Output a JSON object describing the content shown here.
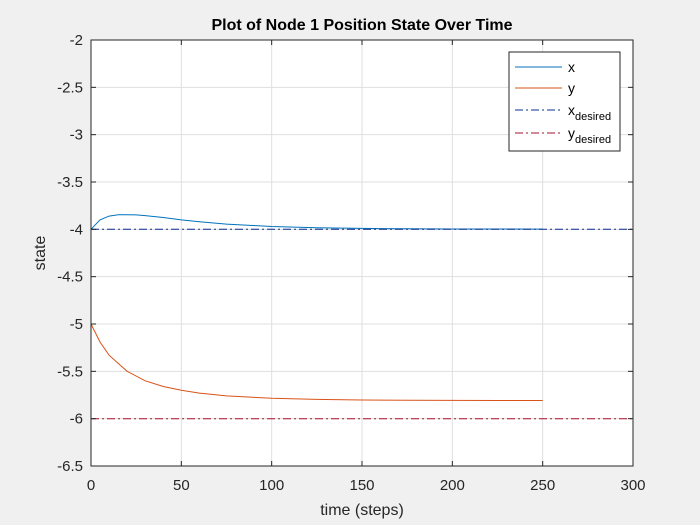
{
  "chart_data": {
    "type": "line",
    "title": "Plot of Node 1 Position State Over Time",
    "xlabel": "time (steps)",
    "ylabel": "state",
    "xlim": [
      0,
      300
    ],
    "ylim": [
      -6.5,
      -2
    ],
    "xticks": [
      0,
      50,
      100,
      150,
      200,
      250,
      300
    ],
    "yticks": [
      -6.5,
      -6,
      -5.5,
      -5,
      -4.5,
      -4,
      -3.5,
      -3,
      -2.5,
      -2
    ],
    "xtick_labels": [
      "0",
      "50",
      "100",
      "150",
      "200",
      "250",
      "300"
    ],
    "ytick_labels": [
      "-6.5",
      "-6",
      "-5.5",
      "-5",
      "-4.5",
      "-4",
      "-3.5",
      "-3",
      "-2.5",
      "-2"
    ],
    "grid": true,
    "legend_position": "top-right",
    "series": [
      {
        "name": "x",
        "color": "#0072bd",
        "style": "solid",
        "x": [
          0,
          5,
          10,
          15,
          20,
          25,
          30,
          40,
          50,
          60,
          75,
          100,
          125,
          150,
          175,
          200,
          225,
          250
        ],
        "y": [
          -4.0,
          -3.9,
          -3.86,
          -3.846,
          -3.845,
          -3.848,
          -3.855,
          -3.875,
          -3.9,
          -3.92,
          -3.945,
          -3.97,
          -3.983,
          -3.99,
          -3.994,
          -3.996,
          -3.997,
          -3.998
        ]
      },
      {
        "name": "y",
        "color": "#d95319",
        "style": "solid",
        "x": [
          0,
          5,
          10,
          20,
          30,
          40,
          50,
          60,
          75,
          100,
          125,
          150,
          175,
          200,
          225,
          250
        ],
        "y": [
          -5.0,
          -5.19,
          -5.33,
          -5.5,
          -5.6,
          -5.66,
          -5.7,
          -5.73,
          -5.76,
          -5.785,
          -5.797,
          -5.803,
          -5.806,
          -5.807,
          -5.808,
          -5.808
        ]
      },
      {
        "name": "x",
        "name_sub": "desired",
        "color": "#0a2f8f",
        "style": "dashdot",
        "x": [
          0,
          300
        ],
        "y": [
          -4,
          -4
        ]
      },
      {
        "name": "y",
        "name_sub": "desired",
        "color": "#a2142f",
        "style": "dashdot",
        "x": [
          0,
          300
        ],
        "y": [
          -6,
          -6
        ]
      }
    ]
  }
}
